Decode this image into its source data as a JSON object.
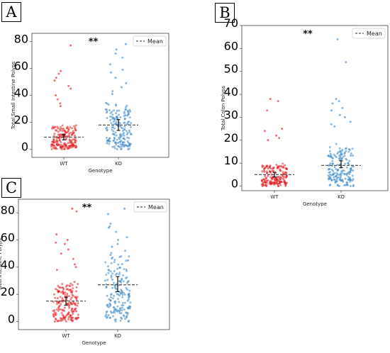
{
  "chart_data": [
    {
      "panel": "A",
      "type": "scatter",
      "style": "strip plot (jitter) with mean line and error bar",
      "categories": [
        "WT",
        "KO"
      ],
      "xlabel": "Genotype",
      "ylabel": "Total Small Intestine Polyps",
      "yticks": [
        0,
        20,
        40,
        60,
        80
      ],
      "ylim": [
        -6,
        86
      ],
      "legend": {
        "label": "Mean",
        "placement": "top-right"
      },
      "significance": "**",
      "series": [
        {
          "category": "WT",
          "color": "#e41a1c",
          "mean": 9,
          "err": [
            7,
            11
          ],
          "max": 77,
          "outliers": [
            77,
            58,
            56,
            53,
            51,
            47,
            45,
            40,
            37,
            34,
            32
          ]
        },
        {
          "category": "KO",
          "color": "#3a87c8",
          "mean": 18,
          "err": [
            14,
            22
          ],
          "max": 78,
          "outliers": [
            78,
            74,
            71,
            68,
            63,
            59,
            57,
            53,
            49,
            46,
            43,
            41
          ]
        }
      ]
    },
    {
      "panel": "B",
      "type": "scatter",
      "style": "strip plot (jitter) with mean line and error bar",
      "categories": [
        "WT",
        "KO"
      ],
      "xlabel": "Genotype",
      "ylabel": "Total Colon Polyps",
      "yticks": [
        0,
        10,
        20,
        30,
        40,
        50,
        60,
        70
      ],
      "ylim": [
        -2,
        70
      ],
      "legend": {
        "label": "Mean",
        "placement": "top-right"
      },
      "significance": "**",
      "series": [
        {
          "category": "WT",
          "color": "#e41a1c",
          "mean": 5,
          "err": [
            4,
            6
          ],
          "max": 38,
          "outliers": [
            38,
            37,
            33,
            25,
            24,
            22,
            21,
            20
          ]
        },
        {
          "category": "KO",
          "color": "#3a87c8",
          "mean": 9,
          "err": [
            8,
            11
          ],
          "max": 64,
          "outliers": [
            64,
            54,
            38,
            37,
            36,
            34,
            33,
            31,
            30,
            28,
            27,
            26
          ]
        }
      ]
    },
    {
      "panel": "C",
      "type": "scatter",
      "style": "strip plot (jitter) with mean line and error bar",
      "categories": [
        "WT",
        "KO"
      ],
      "xlabel": "Genotype",
      "ylabel": "Total Intestine Polyps",
      "yticks": [
        0,
        20,
        40,
        60,
        80
      ],
      "ylim": [
        -6,
        90
      ],
      "legend": {
        "label": "Mean",
        "placement": "top-right"
      },
      "significance": "**",
      "series": [
        {
          "category": "WT",
          "color": "#e41a1c",
          "mean": 15,
          "err": [
            12,
            18
          ],
          "max": 83,
          "outliers": [
            83,
            81,
            64,
            60,
            58,
            57,
            53,
            50,
            46,
            42,
            40,
            38
          ]
        },
        {
          "category": "KO",
          "color": "#3a87c8",
          "mean": 27,
          "err": [
            22,
            33
          ],
          "max": 83,
          "outliers": [
            83,
            79,
            72,
            70,
            69,
            66,
            62,
            60,
            57,
            55,
            52,
            49,
            47,
            45
          ]
        }
      ]
    }
  ],
  "panel_labels": [
    "A",
    "B",
    "C"
  ]
}
